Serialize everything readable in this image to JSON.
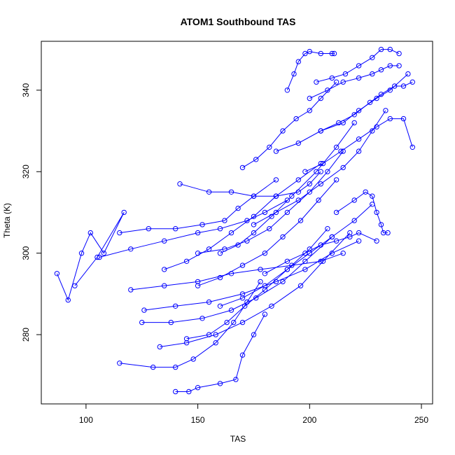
{
  "chart_data": {
    "type": "line",
    "title": "ATOM1 Southbound TAS",
    "xlabel": "TAS",
    "ylabel": "Theta (K)",
    "xlim": [
      80,
      255
    ],
    "ylim": [
      263,
      352
    ],
    "xticks": [
      "100",
      "150",
      "200",
      "250"
    ],
    "yticks": [
      "280",
      "300",
      "320",
      "340"
    ],
    "grid": false,
    "legend": "none",
    "marker": "open-circle",
    "colors": {
      "series": "#0000ff",
      "axis": "#000000"
    },
    "series": [
      {
        "x": [
          87,
          92,
          98,
          102,
          108,
          117,
          105,
          95
        ],
        "y": [
          295,
          288.5,
          300,
          305,
          300,
          310,
          299,
          292
        ]
      },
      {
        "x": [
          106,
          120,
          135,
          150,
          160,
          172,
          180,
          190
        ],
        "y": [
          299,
          301,
          303,
          305,
          306,
          308,
          310,
          313
        ]
      },
      {
        "x": [
          115,
          128,
          140,
          152,
          162,
          168,
          175,
          185
        ],
        "y": [
          305,
          306,
          306,
          307,
          308,
          311,
          314,
          318
        ]
      },
      {
        "x": [
          120,
          135,
          150,
          165,
          178,
          192,
          205,
          215
        ],
        "y": [
          291,
          292,
          293,
          295,
          296,
          297,
          298,
          300
        ]
      },
      {
        "x": [
          126,
          140,
          155,
          170,
          185,
          198,
          210,
          222
        ],
        "y": [
          286,
          287,
          288,
          290,
          293,
          296,
          300,
          303
        ]
      },
      {
        "x": [
          125,
          138,
          152,
          165,
          176,
          188,
          198,
          210
        ],
        "y": [
          283,
          283,
          284,
          286,
          289,
          293,
          298,
          304
        ]
      },
      {
        "x": [
          133,
          145,
          158,
          170,
          183,
          196,
          206,
          218
        ],
        "y": [
          277,
          278,
          280,
          283,
          287,
          292,
          298,
          305
        ]
      },
      {
        "x": [
          115,
          130,
          140,
          148,
          158,
          166,
          172,
          178
        ],
        "y": [
          273,
          272,
          272,
          274,
          278,
          283,
          288,
          293
        ]
      },
      {
        "x": [
          140,
          146,
          150,
          160,
          167,
          170,
          175,
          180
        ],
        "y": [
          266,
          266,
          267,
          268,
          269,
          275,
          280,
          285
        ]
      },
      {
        "x": [
          142,
          155,
          165,
          175,
          185,
          195,
          200,
          205
        ],
        "y": [
          317,
          315,
          315,
          314,
          314,
          315,
          317,
          320
        ]
      },
      {
        "x": [
          150,
          162,
          172,
          182,
          190,
          200,
          208,
          215
        ],
        "y": [
          300,
          301,
          303,
          306,
          310,
          315,
          320,
          325
        ]
      },
      {
        "x": [
          160,
          168,
          175,
          183,
          192,
          203,
          212,
          220
        ],
        "y": [
          300,
          302,
          305,
          309,
          314,
          320,
          326,
          332
        ]
      },
      {
        "x": [
          170,
          176,
          182,
          188,
          194,
          200,
          205,
          212
        ],
        "y": [
          321,
          323,
          326,
          330,
          333,
          335,
          338,
          342
        ]
      },
      {
        "x": [
          190,
          193,
          195,
          198,
          200,
          205,
          210,
          211
        ],
        "y": [
          340,
          344,
          347,
          349,
          349.5,
          349,
          349,
          349
        ]
      },
      {
        "x": [
          203,
          210,
          216,
          222,
          228,
          232,
          236,
          240
        ],
        "y": [
          342,
          343,
          344,
          346,
          348,
          350,
          350,
          349
        ]
      },
      {
        "x": [
          205,
          213,
          220,
          227,
          232,
          238,
          242,
          246
        ],
        "y": [
          330,
          332,
          334,
          337,
          339,
          341,
          341,
          342
        ]
      },
      {
        "x": [
          198,
          206,
          214,
          222,
          230,
          236,
          242,
          246
        ],
        "y": [
          320,
          322,
          325,
          328,
          331,
          333,
          333,
          326
        ]
      },
      {
        "x": [
          212,
          220,
          225,
          228,
          230,
          232,
          233,
          235
        ],
        "y": [
          310,
          313,
          315,
          314,
          310,
          307,
          305,
          305
        ]
      },
      {
        "x": [
          180,
          190,
          198,
          205,
          212,
          218,
          222,
          230
        ],
        "y": [
          295,
          298,
          300,
          302,
          303,
          304,
          305,
          303
        ]
      },
      {
        "x": [
          200,
          208,
          215,
          222,
          228,
          232,
          236,
          240
        ],
        "y": [
          338,
          340,
          342,
          343,
          344,
          345,
          346,
          346
        ]
      },
      {
        "x": [
          150,
          160,
          170,
          180,
          188,
          196,
          204,
          212
        ],
        "y": [
          292,
          294,
          297,
          300,
          304,
          308,
          313,
          318
        ]
      },
      {
        "x": [
          135,
          145,
          155,
          165,
          175,
          185,
          195,
          205
        ],
        "y": [
          296,
          298,
          301,
          305,
          309,
          314,
          318,
          322
        ]
      },
      {
        "x": [
          160,
          170,
          180,
          190,
          200,
          210,
          220,
          228
        ],
        "y": [
          287,
          289,
          292,
          296,
          300,
          304,
          308,
          312
        ]
      },
      {
        "x": [
          145,
          155,
          163,
          171,
          180,
          190,
          200,
          208
        ],
        "y": [
          279,
          280,
          283,
          287,
          291,
          296,
          301,
          306
        ]
      },
      {
        "x": [
          175,
          185,
          195,
          205,
          215,
          222,
          228,
          234
        ],
        "y": [
          307,
          310,
          313,
          317,
          321,
          325,
          330,
          335
        ]
      },
      {
        "x": [
          185,
          195,
          205,
          215,
          222,
          230,
          236,
          244
        ],
        "y": [
          325,
          327,
          330,
          332,
          335,
          338,
          340,
          344
        ]
      }
    ]
  }
}
